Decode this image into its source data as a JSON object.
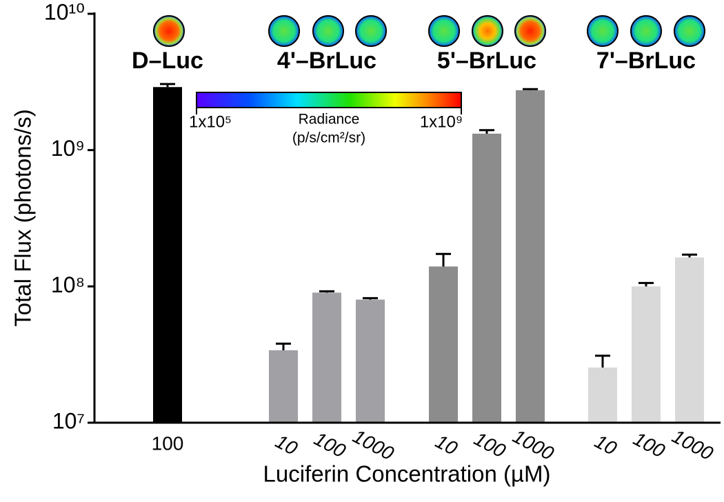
{
  "chart_data": {
    "type": "bar",
    "log_scale": true,
    "ylabel": "Total Flux (photons/s)",
    "xlabel": "Luciferin Concentration (µM)",
    "ylim": [
      10000000,
      10000000000
    ],
    "yticks": [
      {
        "value": 10000000,
        "label": "10⁷"
      },
      {
        "value": 100000000,
        "label": "10⁸"
      },
      {
        "value": 1000000000,
        "label": "10⁹"
      },
      {
        "value": 10000000000,
        "label": "10¹⁰"
      }
    ],
    "series": [
      {
        "name": "D–Luc",
        "color": "#000000",
        "categories": [
          "100"
        ],
        "values": [
          2900000000
        ],
        "errors": [
          150000000
        ]
      },
      {
        "name": "4'–BrLuc",
        "color": "#a0a0a5",
        "categories": [
          "10",
          "100",
          "1000"
        ],
        "values": [
          34000000,
          90000000,
          80000000
        ],
        "errors": [
          4000000,
          2000000,
          2000000
        ]
      },
      {
        "name": "5'–BrLuc",
        "color": "#8c8c8c",
        "categories": [
          "10",
          "100",
          "1000"
        ],
        "values": [
          140000000,
          1320000000,
          2750000000
        ],
        "errors": [
          33000000,
          80000000,
          50000000
        ]
      },
      {
        "name": "7'–BrLuc",
        "color": "#d9d9d9",
        "categories": [
          "10",
          "100",
          "1000"
        ],
        "values": [
          25400000,
          100000000,
          163000000
        ],
        "errors": [
          5600000,
          6000000,
          8000000
        ]
      }
    ],
    "colorbar": {
      "label": "Radiance",
      "unit": "(p/s/cm²/sr)",
      "min_label": "1x10⁵",
      "max_label": "1x10⁹"
    }
  }
}
